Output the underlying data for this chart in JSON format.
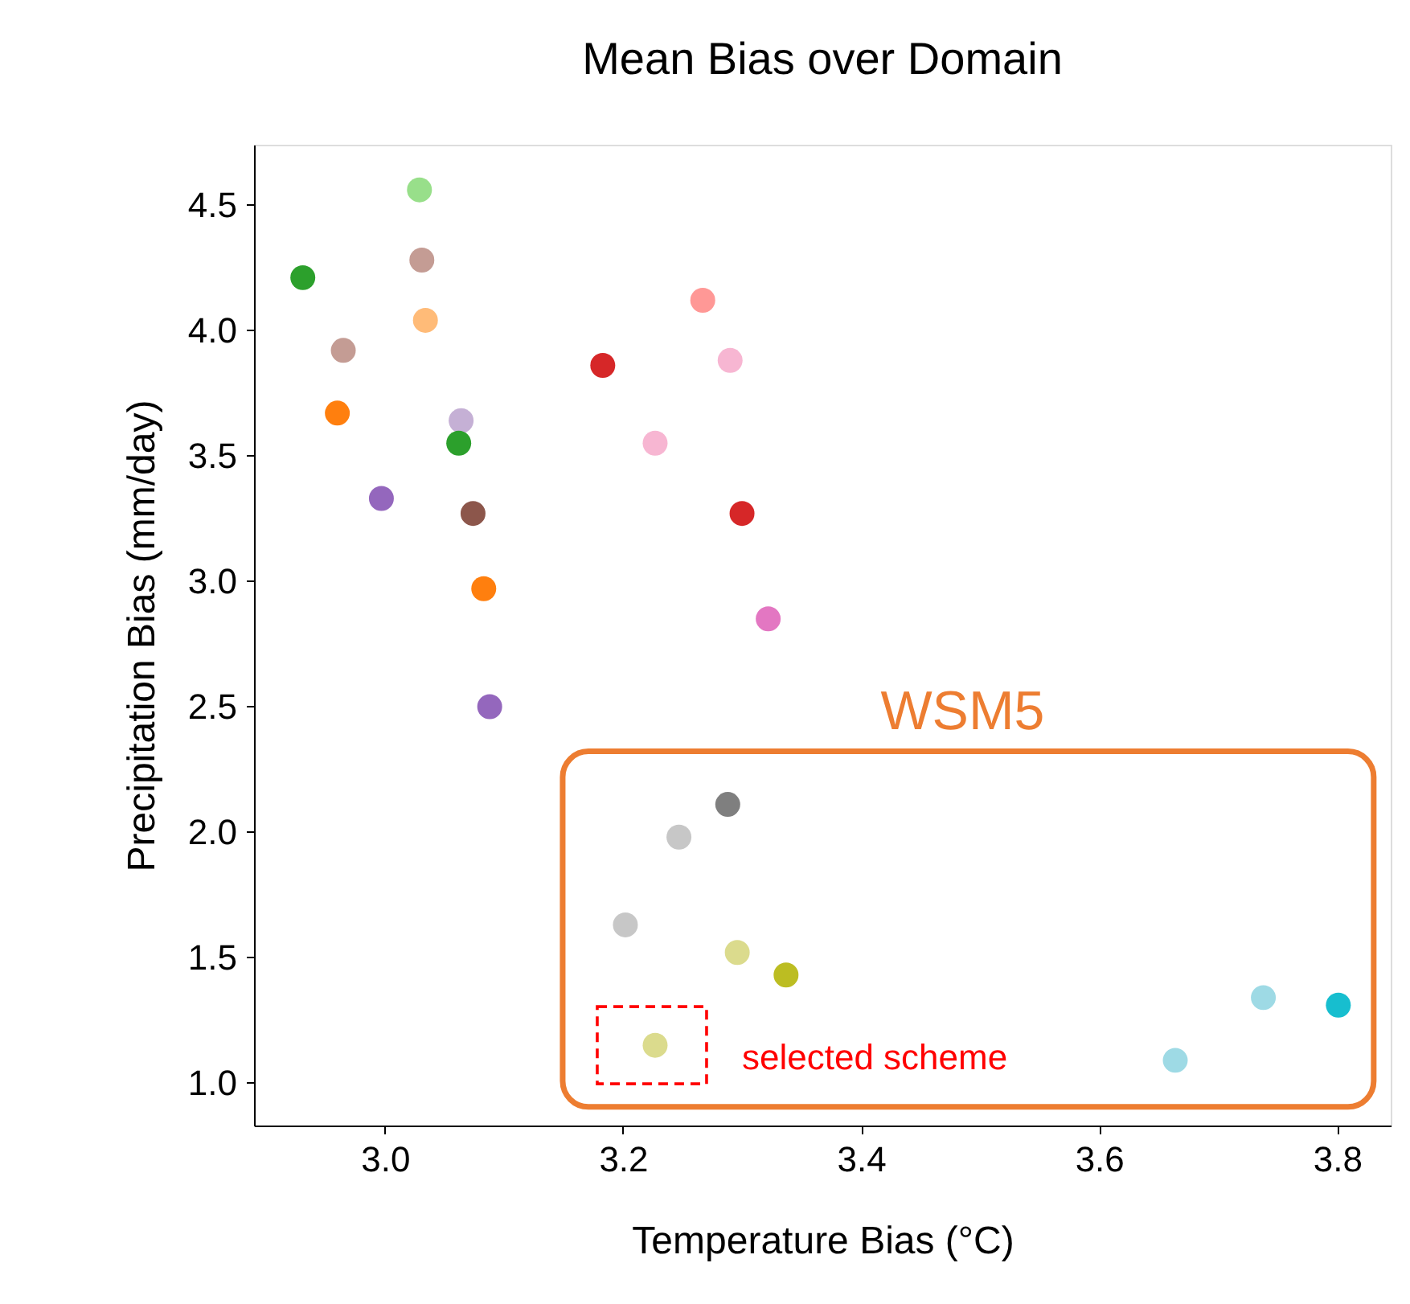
{
  "chart_data": {
    "type": "scatter",
    "title": "Mean Bias over Domain",
    "xlabel": "Temperature Bias (°C)",
    "ylabel": "Precipitation Bias (mm/day)",
    "x": [
      3.029,
      2.931,
      3.031,
      3.034,
      2.965,
      2.96,
      3.064,
      3.062,
      2.997,
      3.074,
      3.083,
      3.088,
      3.183,
      3.267,
      3.29,
      3.227,
      3.3,
      3.322,
      3.288,
      3.247,
      3.202,
      3.296,
      3.337,
      3.227,
      3.664,
      3.738,
      3.801
    ],
    "values": [
      4.56,
      4.21,
      4.28,
      4.04,
      3.92,
      3.67,
      3.64,
      3.55,
      3.33,
      3.27,
      2.97,
      2.5,
      3.86,
      4.12,
      3.88,
      3.55,
      3.27,
      2.85,
      2.11,
      1.98,
      1.63,
      1.52,
      1.43,
      1.15,
      1.09,
      1.34,
      1.31
    ],
    "colors": [
      "#98df8a",
      "#2ca02c",
      "#c49c94",
      "#ffbb78",
      "#c49c94",
      "#ff7f0e",
      "#c5b0d5",
      "#2ca02c",
      "#9467bd",
      "#8c564b",
      "#ff7f0e",
      "#9467bd",
      "#d62728",
      "#ff9896",
      "#f7b6d2",
      "#f7b6d2",
      "#d62728",
      "#e377c2",
      "#7f7f7f",
      "#c7c7c7",
      "#c7c7c7",
      "#dbdb8d",
      "#bcbd22",
      "#dbdb8d",
      "#9edae5",
      "#9edae5",
      "#17becf"
    ],
    "xlim": [
      2.89,
      3.845
    ],
    "ylim": [
      0.83,
      4.74
    ],
    "xticks": [
      {
        "value": 3,
        "label": "3.0"
      },
      3.2,
      3.4,
      3.6,
      3.8
    ],
    "yticks": [
      {
        "value": 1,
        "label": "1.0"
      },
      1.5,
      {
        "value": 2,
        "label": "2.0"
      },
      2.5,
      {
        "value": 3,
        "label": "3.0"
      },
      3.5,
      {
        "value": 4,
        "label": "4.0"
      },
      4.5
    ],
    "marker": "circle",
    "grid": false,
    "legend": false,
    "annotations": [
      "WSM5",
      {
        "text": "selected scheme",
        "x": 3.227,
        "y": 1.15
      }
    ]
  }
}
